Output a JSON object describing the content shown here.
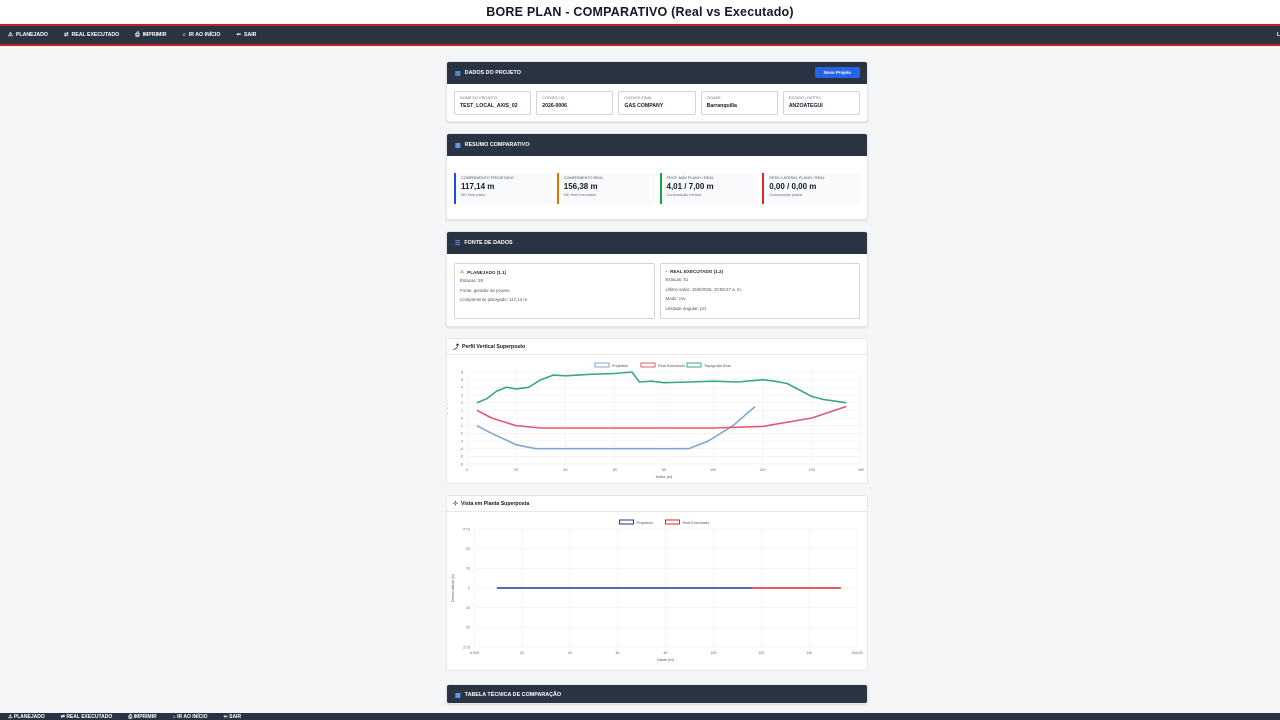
{
  "page_title": "BORE PLAN - COMPARATIVO (Real vs Executado)",
  "nav": [
    {
      "icon": "⚠",
      "label": "PLANEJADO",
      "icon_name": "warning-icon"
    },
    {
      "icon": "⇄",
      "label": "REAL EXECUTADO",
      "icon_name": "swap-icon"
    },
    {
      "icon": "⎙",
      "label": "IMPRIMIR",
      "icon_name": "print-icon"
    },
    {
      "icon": "⌂",
      "label": "IR AO INÍCIO",
      "icon_name": "home-icon"
    },
    {
      "icon": "⇐",
      "label": "SAIR",
      "icon_name": "logout-icon"
    }
  ],
  "nav_right": "L",
  "project": {
    "title": "DADOS DO PROJETO",
    "new_button": "Novo Projeto",
    "fields": [
      {
        "label": "NOME DO PROJETO",
        "value": "TEST_LOCAL_AXIS_02"
      },
      {
        "label": "CÓDIGO / ID",
        "value": "2026-0006"
      },
      {
        "label": "CLIENTE FINAL",
        "value": "GAS COMPANY"
      },
      {
        "label": "CIDADE",
        "value": "Barranquilla"
      },
      {
        "label": "ESTADO / DEPTO.",
        "value": "ANZOATEGUI"
      }
    ]
  },
  "summary": {
    "title": "RESUMO COMPARATIVO",
    "boxes": [
      {
        "label": "COMPRIMENTO PROJETADO",
        "value": "117,14 m",
        "sub": "MD final plano",
        "color": "#1d4ed8"
      },
      {
        "label": "COMPRIMENTO REAL",
        "value": "156,38 m",
        "sub": "MD final executado",
        "color": "#d97706"
      },
      {
        "label": "PROF. MÁX PLANO / REAL",
        "value": "4,01 / 7,00 m",
        "sub": "Comparação vertical",
        "color": "#16a34a"
      },
      {
        "label": "DESV. LATERAL PLANO / REAL",
        "value": "0,00 / 0,00 m",
        "sub": "Comparação planar",
        "color": "#dc2626"
      }
    ]
  },
  "sources": {
    "title": "FONTE DE DADOS",
    "planned": {
      "title": "PLANEJADO (1.1)",
      "lines": [
        "Estacas: 39",
        "Fonte: gerador de projeto",
        "Comprimento planejado: 117,14 m"
      ]
    },
    "real": {
      "title": "REAL EXECUTADO (1.2)",
      "lines": [
        "Estacas: 51",
        "Último salvo: 15/8/2026, 10:55:27 a. m.",
        "Modo: csv",
        "Unidade angular: pct"
      ]
    }
  },
  "vertical_chart": {
    "header": "Perfil Vertical Superposto",
    "chart_data": {
      "type": "line",
      "xlabel": "Haste (m)",
      "ylabel": "Prof./elevação (m)",
      "xlim": [
        0,
        160
      ],
      "ylim": [
        -6,
        6
      ],
      "x_ticks": [
        "0",
        "20",
        "40",
        "60",
        "80",
        "100",
        "120",
        "140",
        "160"
      ],
      "y_ticks": [
        "6",
        "5",
        "4",
        "3",
        "2",
        "1",
        "0",
        "-1",
        "-2",
        "-3",
        "-4",
        "-5",
        "-6"
      ],
      "series": [
        {
          "name": "Projetado",
          "color": "#7ea6d6",
          "x": [
            4,
            10,
            20,
            28,
            60,
            90,
            98,
            108,
            117
          ],
          "y": [
            -1,
            -2,
            -3.5,
            -4,
            -4,
            -4,
            -3,
            -1,
            1.5
          ]
        },
        {
          "name": "Real Executado",
          "color": "#e05a72",
          "x": [
            4,
            10,
            20,
            30,
            60,
            100,
            120,
            140,
            154
          ],
          "y": [
            1,
            0,
            -1,
            -1.3,
            -1.3,
            -1.3,
            -1.1,
            0,
            1.5
          ]
        },
        {
          "name": "Topografia Real",
          "color": "#3aa789",
          "x": [
            4,
            8,
            12,
            16,
            20,
            25,
            30,
            35,
            40,
            50,
            60,
            67,
            70,
            75,
            80,
            90,
            100,
            110,
            120,
            125,
            130,
            140,
            145,
            154
          ],
          "y": [
            2,
            2.5,
            3.5,
            4,
            3.8,
            4,
            5,
            5.6,
            5.5,
            5.7,
            5.8,
            6,
            4.7,
            4.8,
            4.6,
            4.7,
            4.8,
            4.7,
            5,
            4.8,
            4.5,
            2.8,
            2.4,
            2
          ]
        }
      ]
    }
  },
  "plan_chart": {
    "header": "Vista em Planta Superposta",
    "chart_data": {
      "type": "line",
      "xlabel": "Haste (m)",
      "ylabel": "Desvio lateral (m)",
      "xlim": [
        -4.993,
        163.05
      ],
      "ylim": [
        -27.8,
        27.8
      ],
      "x_ticks": [
        "-4,993",
        "20",
        "40",
        "60",
        "80",
        "100",
        "120",
        "140",
        "163,05"
      ],
      "y_ticks": [
        "27,8",
        "20",
        "10",
        "0",
        "10",
        "20",
        "27,8"
      ],
      "series": [
        {
          "name": "Projetado",
          "color": "#1e3a8a",
          "x": [
            5,
            117
          ],
          "y": [
            0,
            0
          ]
        },
        {
          "name": "Real Executado",
          "color": "#dc2626",
          "x": [
            117,
            156
          ],
          "y": [
            0,
            0
          ]
        }
      ]
    }
  },
  "tech_table": {
    "title": "TABELA TÉCNICA DE COMPARAÇÃO"
  }
}
